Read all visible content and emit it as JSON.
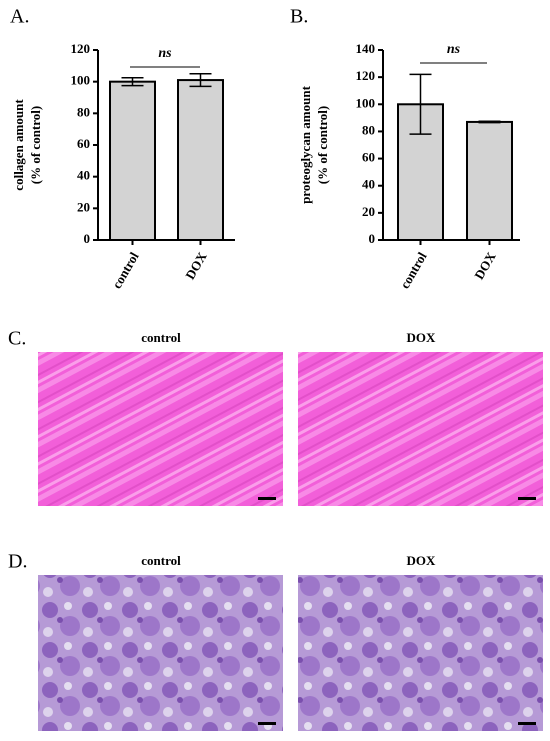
{
  "chart_data": [
    {
      "type": "bar",
      "panel_label": "A.",
      "ylabel": [
        "collagen amount",
        "(% of control)"
      ],
      "categories": [
        "control",
        "DOX"
      ],
      "values": [
        100,
        101
      ],
      "errors": [
        2.5,
        4
      ],
      "color": "#d3d3d3",
      "ylim": [
        0,
        120
      ],
      "yticks": [
        0,
        20,
        40,
        60,
        80,
        100,
        120
      ],
      "annotation": "ns"
    },
    {
      "type": "bar",
      "panel_label": "B.",
      "ylabel": [
        "proteoglycan amount",
        "(% of control)"
      ],
      "categories": [
        "control",
        "DOX"
      ],
      "values": [
        100,
        87
      ],
      "errors": [
        22,
        0.5
      ],
      "color": "#d3d3d3",
      "ylim": [
        0,
        140
      ],
      "yticks": [
        0,
        20,
        40,
        60,
        80,
        100,
        120,
        140
      ],
      "annotation": "ns"
    }
  ],
  "histology": [
    {
      "panel_label": "C.",
      "images": [
        {
          "title": "control"
        },
        {
          "title": "DOX"
        }
      ]
    },
    {
      "panel_label": "D.",
      "images": [
        {
          "title": "control"
        },
        {
          "title": "DOX"
        }
      ]
    }
  ]
}
